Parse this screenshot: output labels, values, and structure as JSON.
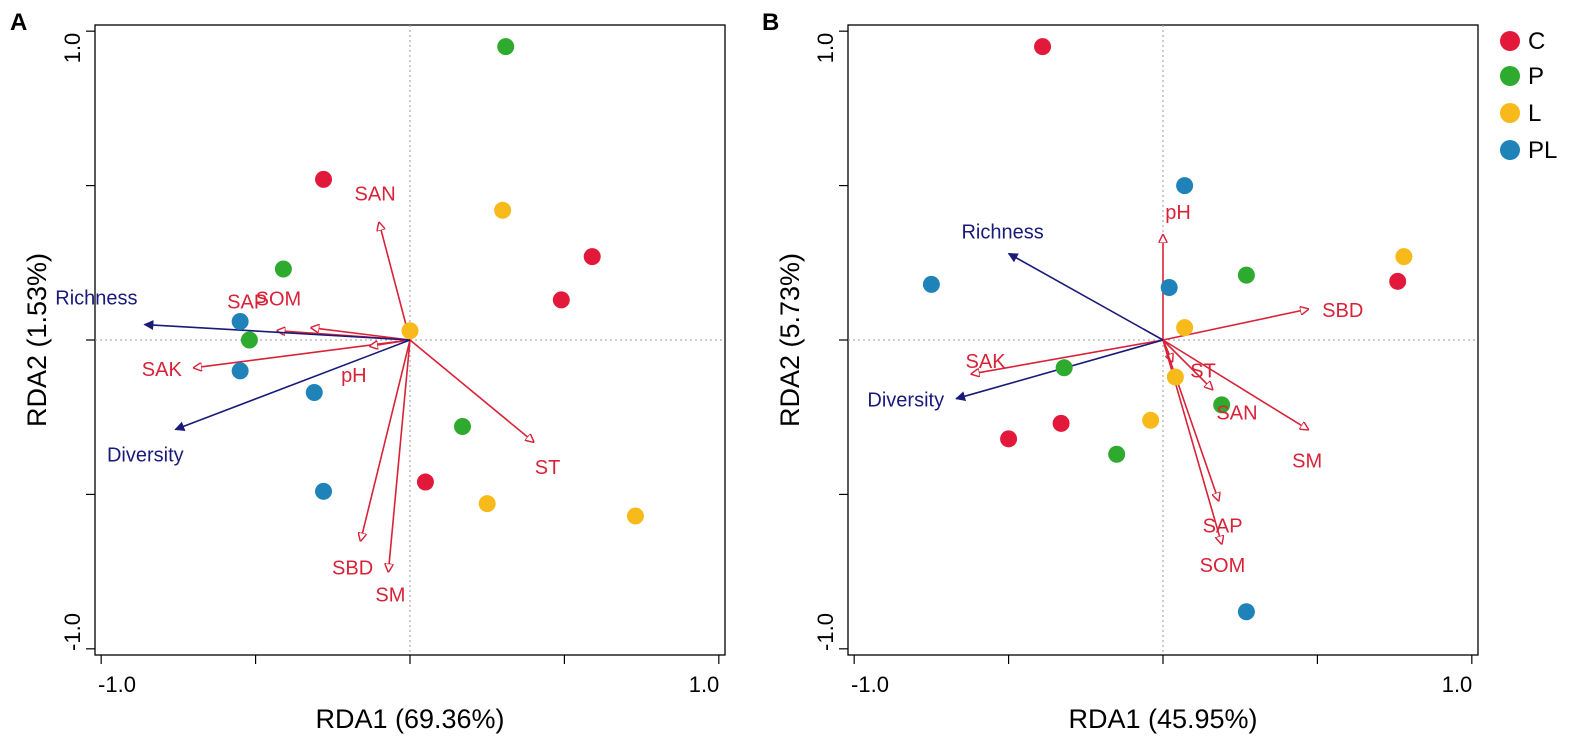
{
  "colors": {
    "C": "#e3193b",
    "P": "#2eaa2e",
    "L": "#f8b91a",
    "PL": "#1f82b8",
    "env_arrow": "#d92238",
    "species_arrow": "#1a1a7a",
    "frame": "#000000",
    "guide": "#9a9a9a"
  },
  "legend": {
    "position": "top-right",
    "entries": [
      {
        "label": "C",
        "color_key": "C"
      },
      {
        "label": "P",
        "color_key": "P"
      },
      {
        "label": "L",
        "color_key": "L"
      },
      {
        "label": "PL",
        "color_key": "PL"
      }
    ]
  },
  "chart_data": [
    {
      "type": "scatter",
      "panel_label": "A",
      "title": "",
      "xlabel": "RDA1 (69.36%)",
      "ylabel": "RDA2 (1.53%)",
      "xlim": [
        -1.02,
        1.02
      ],
      "ylim": [
        -1.02,
        1.02
      ],
      "x_ticks": [
        -1.0,
        -0.5,
        0.0,
        0.5,
        1.0
      ],
      "y_ticks": [
        -1.0,
        -0.5,
        0.0,
        0.5,
        1.0
      ],
      "x_tick_labels": [
        {
          "value": -1.0,
          "label": "-1.0"
        },
        {
          "value": 1.0,
          "label": "1.0"
        }
      ],
      "y_tick_labels": [
        {
          "value": 1.0,
          "label": "1.0"
        },
        {
          "value": -1.0,
          "label": "-1.0"
        }
      ],
      "reference_lines": {
        "x": 0,
        "y": 0,
        "style": "dotted"
      },
      "sites": [
        {
          "group": "C",
          "x": -0.28,
          "y": 0.52
        },
        {
          "group": "C",
          "x": 0.59,
          "y": 0.27
        },
        {
          "group": "C",
          "x": 0.49,
          "y": 0.13
        },
        {
          "group": "C",
          "x": 0.05,
          "y": -0.46
        },
        {
          "group": "P",
          "x": 0.31,
          "y": 0.95
        },
        {
          "group": "P",
          "x": -0.41,
          "y": 0.23
        },
        {
          "group": "P",
          "x": -0.52,
          "y": 0.0
        },
        {
          "group": "P",
          "x": 0.17,
          "y": -0.28
        },
        {
          "group": "L",
          "x": 0.3,
          "y": 0.42
        },
        {
          "group": "L",
          "x": 0.0,
          "y": 0.03
        },
        {
          "group": "L",
          "x": 0.25,
          "y": -0.53
        },
        {
          "group": "L",
          "x": 0.73,
          "y": -0.57
        },
        {
          "group": "PL",
          "x": -0.55,
          "y": 0.06
        },
        {
          "group": "PL",
          "x": -0.55,
          "y": -0.1
        },
        {
          "group": "PL",
          "x": -0.31,
          "y": -0.17
        },
        {
          "group": "PL",
          "x": -0.28,
          "y": -0.49
        }
      ],
      "env_vectors": [
        {
          "label": "SAN",
          "x": -0.1,
          "y": 0.38
        },
        {
          "label": "SOM",
          "x": -0.32,
          "y": 0.04
        },
        {
          "label": "SAP",
          "x": -0.43,
          "y": 0.03
        },
        {
          "label": "SAK",
          "x": -0.7,
          "y": -0.09
        },
        {
          "label": "pH",
          "x": -0.13,
          "y": -0.02
        },
        {
          "label": "ST",
          "x": 0.4,
          "y": -0.33
        },
        {
          "label": "SBD",
          "x": -0.16,
          "y": -0.65
        },
        {
          "label": "SM",
          "x": -0.07,
          "y": -0.75
        }
      ],
      "species_vectors": [
        {
          "label": "Richness",
          "x": -0.86,
          "y": 0.05
        },
        {
          "label": "Diversity",
          "x": -0.76,
          "y": -0.29
        }
      ]
    },
    {
      "type": "scatter",
      "panel_label": "B",
      "title": "",
      "xlabel": "RDA1 (45.95%)",
      "ylabel": "RDA2 (5.73%)",
      "xlim": [
        -1.02,
        1.02
      ],
      "ylim": [
        -1.02,
        1.02
      ],
      "x_ticks": [
        -1.0,
        -0.5,
        0.0,
        0.5,
        1.0
      ],
      "y_ticks": [
        -1.0,
        -0.5,
        0.0,
        0.5,
        1.0
      ],
      "x_tick_labels": [
        {
          "value": -1.0,
          "label": "-1.0"
        },
        {
          "value": 1.0,
          "label": "1.0"
        }
      ],
      "y_tick_labels": [
        {
          "value": 1.0,
          "label": "1.0"
        },
        {
          "value": -1.0,
          "label": "-1.0"
        }
      ],
      "reference_lines": {
        "x": 0,
        "y": 0,
        "style": "dotted"
      },
      "sites": [
        {
          "group": "C",
          "x": -0.39,
          "y": 0.95
        },
        {
          "group": "C",
          "x": 0.76,
          "y": 0.19
        },
        {
          "group": "C",
          "x": -0.33,
          "y": -0.27
        },
        {
          "group": "C",
          "x": -0.5,
          "y": -0.32
        },
        {
          "group": "P",
          "x": 0.27,
          "y": 0.21
        },
        {
          "group": "P",
          "x": -0.32,
          "y": -0.09
        },
        {
          "group": "P",
          "x": 0.19,
          "y": -0.21
        },
        {
          "group": "P",
          "x": -0.15,
          "y": -0.37
        },
        {
          "group": "L",
          "x": 0.78,
          "y": 0.27
        },
        {
          "group": "L",
          "x": 0.07,
          "y": 0.04
        },
        {
          "group": "L",
          "x": 0.04,
          "y": -0.12
        },
        {
          "group": "L",
          "x": -0.04,
          "y": -0.26
        },
        {
          "group": "PL",
          "x": 0.07,
          "y": 0.5
        },
        {
          "group": "PL",
          "x": 0.02,
          "y": 0.17
        },
        {
          "group": "PL",
          "x": -0.75,
          "y": 0.18
        },
        {
          "group": "PL",
          "x": 0.27,
          "y": -0.88
        }
      ],
      "env_vectors": [
        {
          "label": "pH",
          "x": 0.0,
          "y": 0.34
        },
        {
          "label": "SBD",
          "x": 0.47,
          "y": 0.1
        },
        {
          "label": "ST",
          "x": 0.03,
          "y": -0.07
        },
        {
          "label": "SAN",
          "x": 0.16,
          "y": -0.16
        },
        {
          "label": "SM",
          "x": 0.47,
          "y": -0.29
        },
        {
          "label": "SAP",
          "x": 0.18,
          "y": -0.52
        },
        {
          "label": "SOM",
          "x": 0.19,
          "y": -0.66
        },
        {
          "label": "SAK",
          "x": -0.62,
          "y": -0.11
        }
      ],
      "species_vectors": [
        {
          "label": "Richness",
          "x": -0.5,
          "y": 0.28
        },
        {
          "label": "Diversity",
          "x": -0.67,
          "y": -0.19
        }
      ]
    }
  ]
}
